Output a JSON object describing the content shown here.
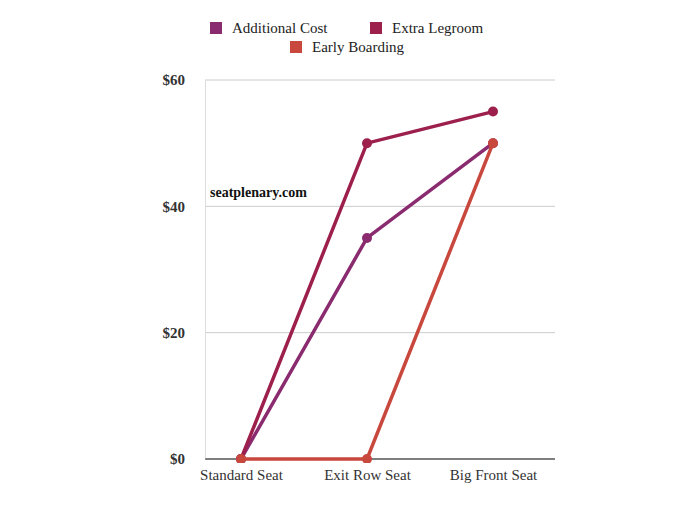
{
  "chart_data": {
    "type": "line",
    "categories": [
      "Standard Seat",
      "Exit Row Seat",
      "Big Front Seat"
    ],
    "series": [
      {
        "name": "Additional Cost",
        "color": "#8a2a6f",
        "marker": "circle",
        "values": [
          0,
          35,
          50
        ]
      },
      {
        "name": "Extra Legroom",
        "color": "#9c1f4c",
        "marker": "circle",
        "values": [
          0,
          50,
          55
        ]
      },
      {
        "name": "Early Boarding",
        "color": "#c9483e",
        "marker": "circle",
        "values": [
          0,
          0,
          50
        ]
      }
    ],
    "annotations": [
      "seatplenary.com"
    ],
    "ylim": [
      0,
      60
    ],
    "yticks": [
      {
        "value": 0,
        "label": "$0"
      },
      {
        "value": 20,
        "label": "$20"
      },
      {
        "value": 40,
        "label": "$40"
      },
      {
        "value": 60,
        "label": "$60"
      }
    ],
    "grid": true,
    "legend": "top"
  }
}
